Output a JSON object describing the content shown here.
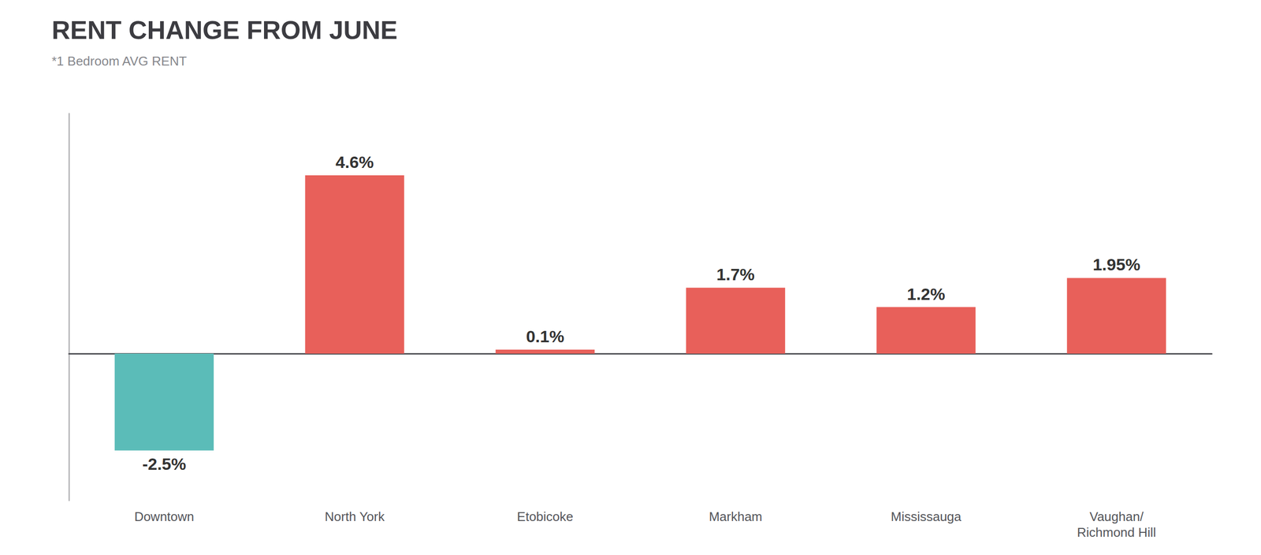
{
  "chart_data": {
    "type": "bar",
    "title": "RENT CHANGE FROM JUNE",
    "subtitle": "*1 Bedroom AVG RENT",
    "categories": [
      "Downtown",
      "North York",
      "Etobicoke",
      "Markham",
      "Mississauga",
      "Vaughan/\nRichmond Hill"
    ],
    "values": [
      -2.5,
      4.6,
      0.1,
      1.7,
      1.2,
      1.95
    ],
    "value_labels": [
      "-2.5%",
      "4.6%",
      "0.1%",
      "1.7%",
      "1.2%",
      "1.95%"
    ],
    "colors": [
      "#5bbcb8",
      "#e8605a",
      "#e8605a",
      "#e8605a",
      "#e8605a",
      "#e8605a"
    ],
    "data_labels": true,
    "ylim": [
      -3.8,
      6.2
    ],
    "grid": false,
    "tick_labels": "x"
  }
}
